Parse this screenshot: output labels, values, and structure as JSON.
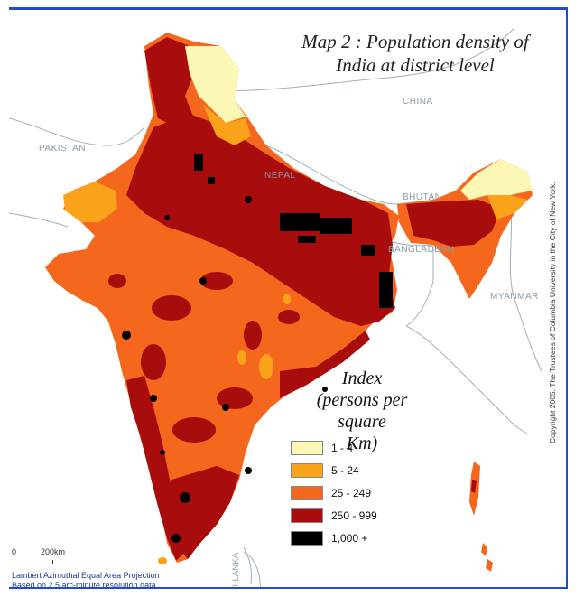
{
  "map": {
    "title_line1": "Map 2 : Population density of",
    "title_line2": "India at district level",
    "countries": {
      "china": "CHINA",
      "pakistan": "PAKISTAN",
      "nepal": "NEPAL",
      "bhutan": "BHUTAN",
      "bangladesh": "BANGLADESH",
      "myanmar": "MYANMAR",
      "sri_lanka": "SRI LANKA"
    },
    "legend": {
      "title_line1": "Index",
      "title_line2": "(persons per square",
      "title_line3": "Km)",
      "items": [
        {
          "label": "1 - 4",
          "color": "#fdf7b6"
        },
        {
          "label": "5 - 24",
          "color": "#f9a21a"
        },
        {
          "label": "25 - 249",
          "color": "#f5671c"
        },
        {
          "label": "250 - 999",
          "color": "#a80c0c"
        },
        {
          "label": "1,000 +",
          "color": "#000000"
        }
      ]
    },
    "copyright": "Copyright 2005. The Trustees of Columbia University in the City of New York.",
    "scale": {
      "zero": "0",
      "distance": "200km"
    },
    "projection_line1": "Lambert Azimuthal Equal Area Projection",
    "projection_line2": "Based on 2.5 arc-minute resolution data",
    "colors": {
      "neighbour_outline": "#9db0bd",
      "frame": "#1f4bd1"
    }
  }
}
